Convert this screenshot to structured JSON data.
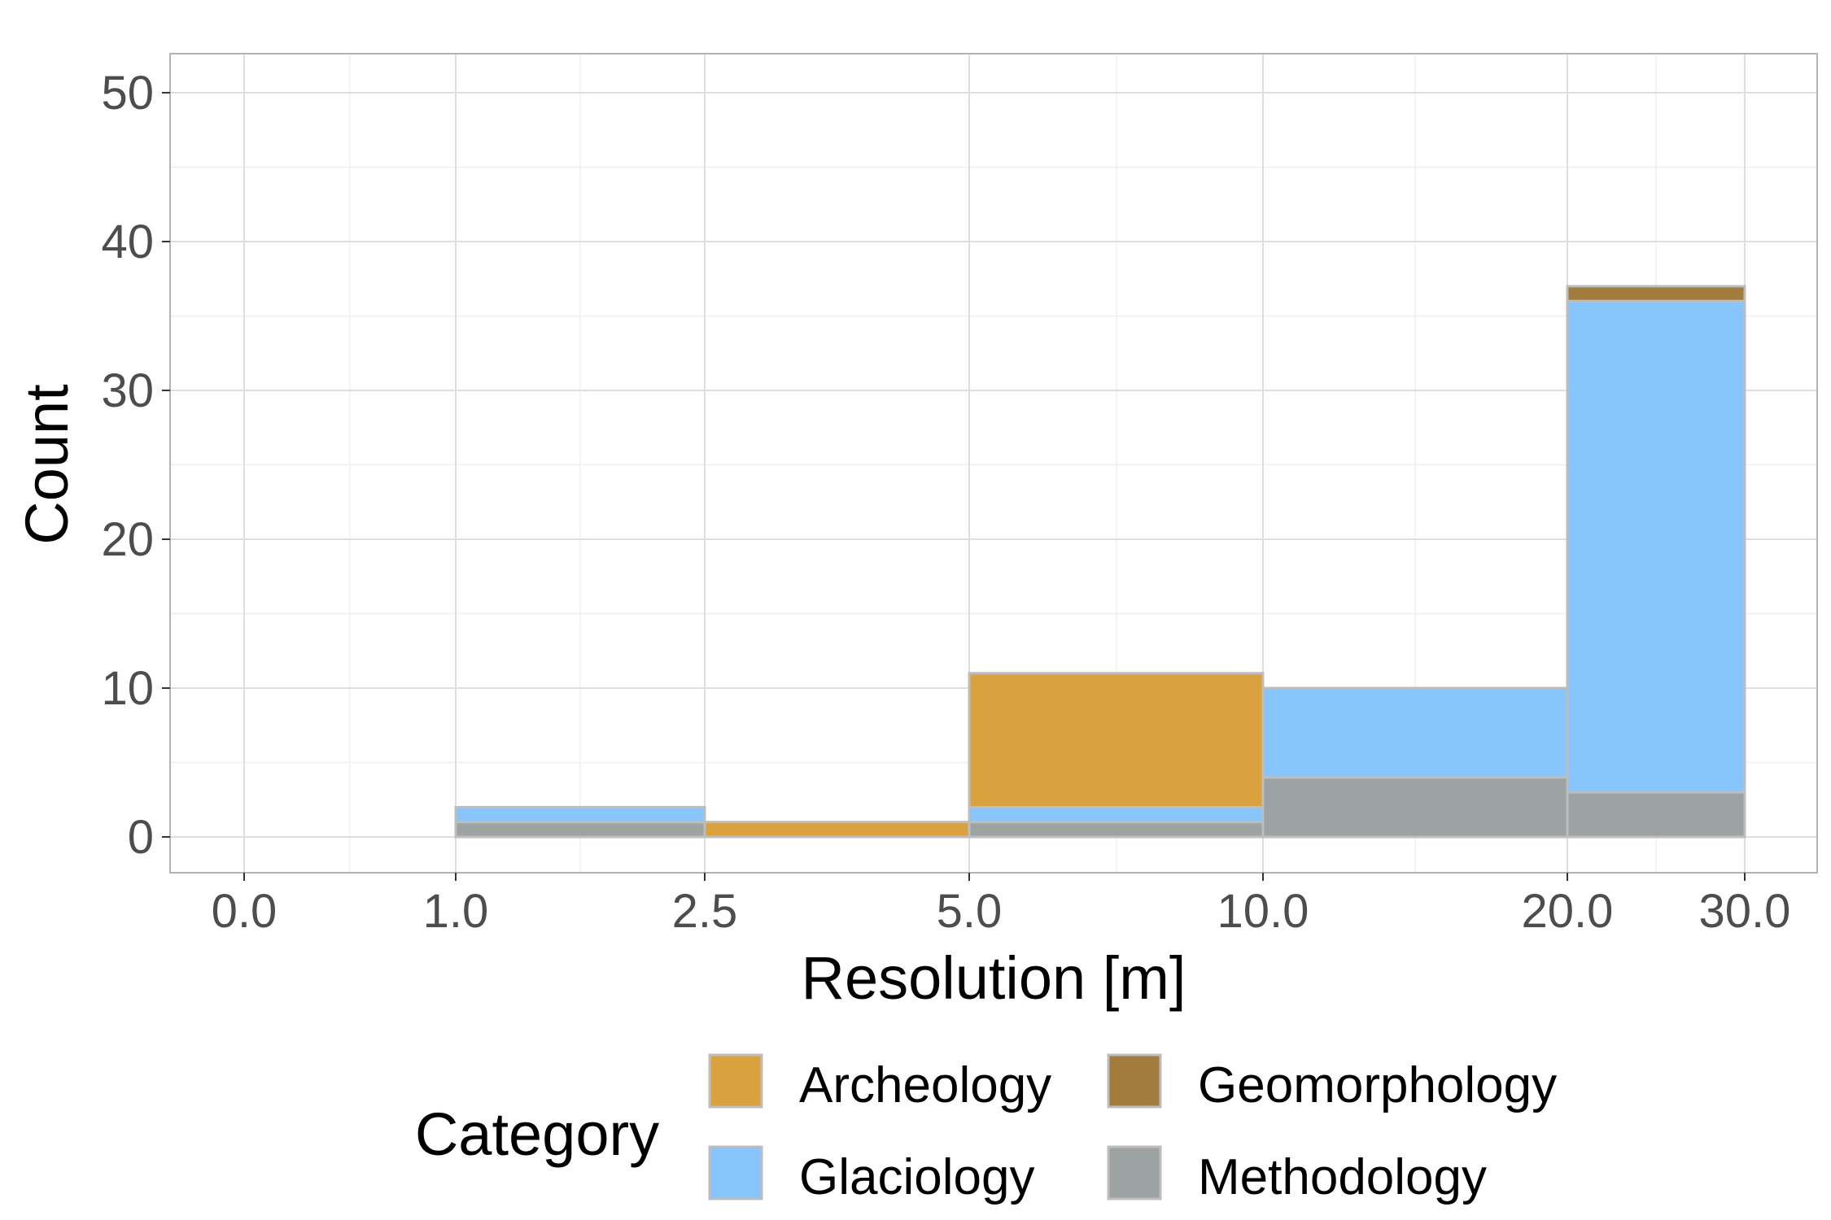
{
  "chart_data": {
    "type": "bar",
    "subtype": "stacked-histogram",
    "xlabel": "Resolution [m]",
    "ylabel": "Count",
    "x_ticks": [
      "0.0",
      "1.0",
      "2.5",
      "5.0",
      "10.0",
      "20.0",
      "30.0"
    ],
    "y_ticks": [
      "0",
      "10",
      "20",
      "30",
      "40",
      "50"
    ],
    "ylim": [
      0,
      52
    ],
    "grid": true,
    "legend_position": "bottom",
    "legend_title": "Category",
    "bins": [
      "0.0–1.0",
      "1.0–2.5",
      "2.5–5.0",
      "5.0–10.0",
      "10.0–20.0",
      "20.0–30.0"
    ],
    "series": [
      {
        "name": "Methodology",
        "color": "#9da2a2",
        "values": [
          0,
          1,
          0,
          1,
          4,
          3
        ]
      },
      {
        "name": "Glaciology",
        "color": "#87c5fc",
        "values": [
          0,
          1,
          0,
          1,
          6,
          33
        ]
      },
      {
        "name": "Archeology",
        "color": "#daa23e",
        "values": [
          0,
          0,
          1,
          9,
          0,
          0
        ]
      },
      {
        "name": "Geomorphology",
        "color": "#a27c3c",
        "values": [
          0,
          0,
          0,
          0,
          0,
          1
        ]
      }
    ],
    "legend_items": [
      {
        "name": "Archeology",
        "color": "#daa23e"
      },
      {
        "name": "Geomorphology",
        "color": "#a27c3c"
      },
      {
        "name": "Glaciology",
        "color": "#87c5fc"
      },
      {
        "name": "Methodology",
        "color": "#9da2a2"
      }
    ]
  }
}
